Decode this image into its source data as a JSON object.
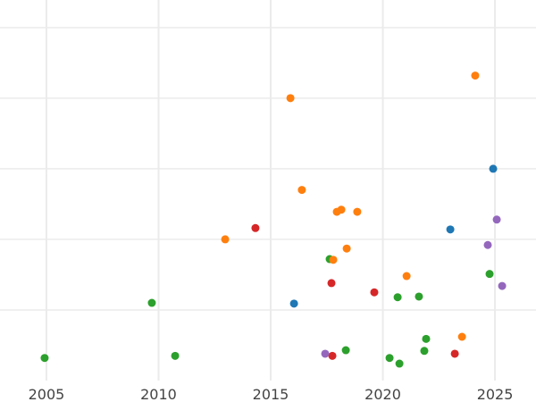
{
  "chart_data": {
    "type": "scatter",
    "title": "",
    "xlabel": "",
    "ylabel": "",
    "xlim": [
      2002.93,
      2026.83
    ],
    "ylim": [
      0,
      5.39
    ],
    "x_ticks": [
      "2005",
      "2010",
      "2015",
      "2020",
      "2025"
    ],
    "x_tick_values": [
      2005,
      2010,
      2015,
      2020,
      2025
    ],
    "y_grid_values": [
      1,
      2,
      3,
      4,
      5
    ],
    "y_tick_labels_shown": false,
    "grid": true,
    "legend": "none",
    "series": [
      {
        "color": "#2ca02c",
        "points": [
          [
            2004.92,
            0.32
          ],
          [
            2009.7,
            1.1
          ],
          [
            2010.74,
            0.35
          ],
          [
            2017.63,
            1.72
          ],
          [
            2018.35,
            0.43
          ],
          [
            2020.3,
            0.32
          ],
          [
            2020.66,
            1.18
          ],
          [
            2020.74,
            0.24
          ],
          [
            2021.61,
            1.19
          ],
          [
            2021.85,
            0.42
          ],
          [
            2021.93,
            0.59
          ],
          [
            2024.76,
            1.51
          ]
        ]
      },
      {
        "color": "#ff7f0e",
        "points": [
          [
            2015.88,
            4.0
          ],
          [
            2024.12,
            4.32
          ],
          [
            2016.39,
            2.7
          ],
          [
            2017.95,
            2.39
          ],
          [
            2018.15,
            2.42
          ],
          [
            2018.86,
            2.39
          ],
          [
            2012.97,
            2.0
          ],
          [
            2018.39,
            1.87
          ],
          [
            2017.79,
            1.71
          ],
          [
            2021.06,
            1.48
          ],
          [
            2023.53,
            0.62
          ]
        ]
      },
      {
        "color": "#1f77b4",
        "points": [
          [
            2024.92,
            3.0
          ],
          [
            2023.01,
            2.14
          ],
          [
            2016.04,
            1.09
          ]
        ]
      },
      {
        "color": "#d62728",
        "points": [
          [
            2014.32,
            2.16
          ],
          [
            2017.71,
            1.38
          ],
          [
            2019.62,
            1.25
          ],
          [
            2017.75,
            0.35
          ],
          [
            2023.21,
            0.38
          ]
        ]
      },
      {
        "color": "#9467bd",
        "points": [
          [
            2025.08,
            2.28
          ],
          [
            2024.68,
            1.92
          ],
          [
            2025.32,
            1.34
          ],
          [
            2017.43,
            0.38
          ]
        ]
      }
    ]
  }
}
